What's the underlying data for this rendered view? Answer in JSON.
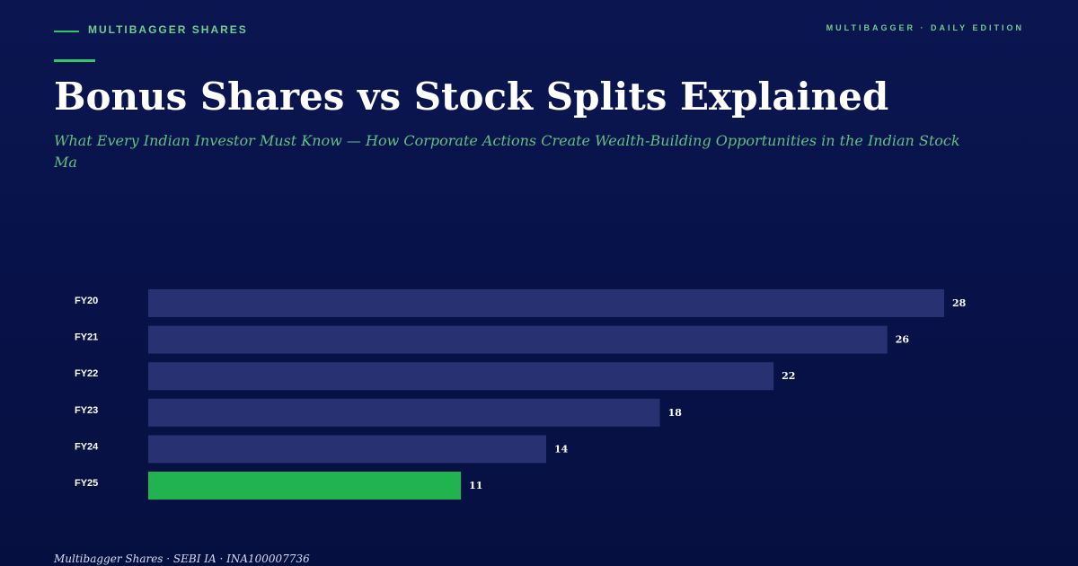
{
  "header": {
    "kicker": "MULTIBAGGER SHARES",
    "edition": "MULTIBAGGER · DAILY EDITION",
    "title": "Bonus Shares vs Stock Splits Explained",
    "subtitle": "What Every Indian Investor Must Know — How Corporate Actions Create Wealth-Building Opportunities in the Indian Stock Ma"
  },
  "footer": {
    "credit": "Multibagger Shares · SEBI IA · INA100007736"
  },
  "colors": {
    "background": "#0b1650",
    "accent": "#34c46a",
    "kicker_text": "#6fcf8f",
    "bar_default": "#283272",
    "bar_highlight": "#22b351",
    "text": "#ffffff"
  },
  "chart_data": {
    "type": "bar",
    "orientation": "horizontal",
    "categories": [
      "FY20",
      "FY21",
      "FY22",
      "FY23",
      "FY24",
      "FY25"
    ],
    "values": [
      28,
      26,
      22,
      18,
      14,
      11
    ],
    "highlight_index": 5,
    "xlim": [
      0,
      28
    ],
    "grid": false,
    "legend": "none",
    "title": "",
    "xlabel": "",
    "ylabel": ""
  }
}
